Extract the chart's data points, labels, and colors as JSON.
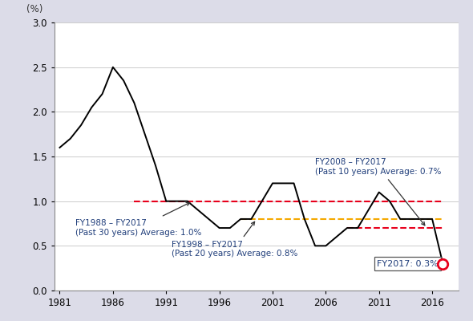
{
  "years": [
    1981,
    1982,
    1983,
    1984,
    1985,
    1986,
    1987,
    1988,
    1989,
    1990,
    1991,
    1992,
    1993,
    1994,
    1995,
    1996,
    1997,
    1998,
    1999,
    2000,
    2001,
    2002,
    2003,
    2004,
    2005,
    2006,
    2007,
    2008,
    2009,
    2010,
    2011,
    2012,
    2013,
    2014,
    2015,
    2016,
    2017
  ],
  "values": [
    1.6,
    1.7,
    1.85,
    2.05,
    2.2,
    2.5,
    2.35,
    2.1,
    1.75,
    1.4,
    1.0,
    1.0,
    1.0,
    0.9,
    0.8,
    0.7,
    0.7,
    0.8,
    0.8,
    1.0,
    1.2,
    1.2,
    1.2,
    0.8,
    0.5,
    0.5,
    0.6,
    0.7,
    0.7,
    0.9,
    1.1,
    1.0,
    0.8,
    0.8,
    0.8,
    0.8,
    0.3
  ],
  "avg_30yr": 1.0,
  "avg_20yr": 0.8,
  "avg_10yr": 0.7,
  "avg_30yr_color": "#e8001c",
  "avg_20yr_color": "#f5a800",
  "avg_10yr_color": "#e8001c",
  "line_color": "#000000",
  "last_point_color": "#e8001c",
  "last_year": 2017,
  "last_value": 0.3,
  "ylabel": "(%)",
  "ylim": [
    0.0,
    3.0
  ],
  "xlim": [
    1980.5,
    2018.5
  ],
  "xticks": [
    1981,
    1986,
    1991,
    1996,
    2001,
    2006,
    2011,
    2016
  ],
  "yticks": [
    0.0,
    0.5,
    1.0,
    1.5,
    2.0,
    2.5,
    3.0
  ],
  "annotation_30yr_text": "FY1988 – FY2017\n(Past 30 years) Average: 1.0%",
  "annotation_20yr_text": "FY1998 – FY2017\n(Past 20 years) Average: 0.8%",
  "annotation_10yr_text": "FY2008 – FY2017\n(Past 10 years) Average: 0.7%",
  "annotation_last_text": "FY2017: 0.3%",
  "text_color": "#1f3d7a",
  "bg_color": "#ffffff",
  "outer_bg": "#dcdce8",
  "grid_color": "#cccccc",
  "avg_30yr_start": 1988,
  "avg_30yr_end": 2017,
  "avg_20yr_start": 1998,
  "avg_20yr_end": 2017,
  "avg_10yr_start": 2008,
  "avg_10yr_end": 2017
}
